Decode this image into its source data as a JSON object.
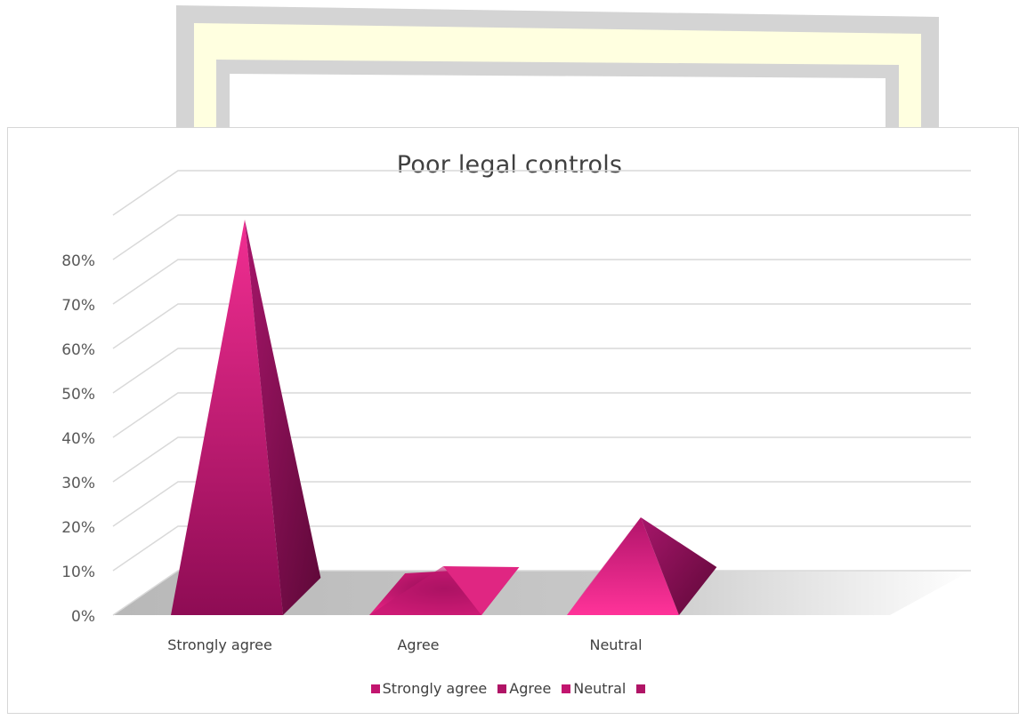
{
  "chart_data": {
    "type": "bar",
    "bar_shape": "pyramid",
    "title": "Poor legal controls",
    "categories": [
      "Strongly agree",
      "Agree",
      "Neutral",
      ""
    ],
    "values": [
      0.84,
      0.06,
      0.17,
      0
    ],
    "ylim": [
      0,
      0.9
    ],
    "yticks": [
      "0%",
      "10%",
      "20%",
      "30%",
      "40%",
      "50%",
      "60%",
      "70%",
      "80%"
    ],
    "grid": true,
    "legend": {
      "placement": "bottom",
      "entries": [
        "Strongly agree",
        "Agree",
        "Neutral",
        ""
      ]
    },
    "colors": {
      "front_top": "#f0288c",
      "front_bottom": "#8c0c52",
      "side": "#6e0a42",
      "floor": "#c8c8c8",
      "gridline": "#d9d9d9"
    }
  },
  "legend_swatch_colors": [
    "#c2156f",
    "#b01466",
    "#c2156f",
    "#b01466"
  ]
}
